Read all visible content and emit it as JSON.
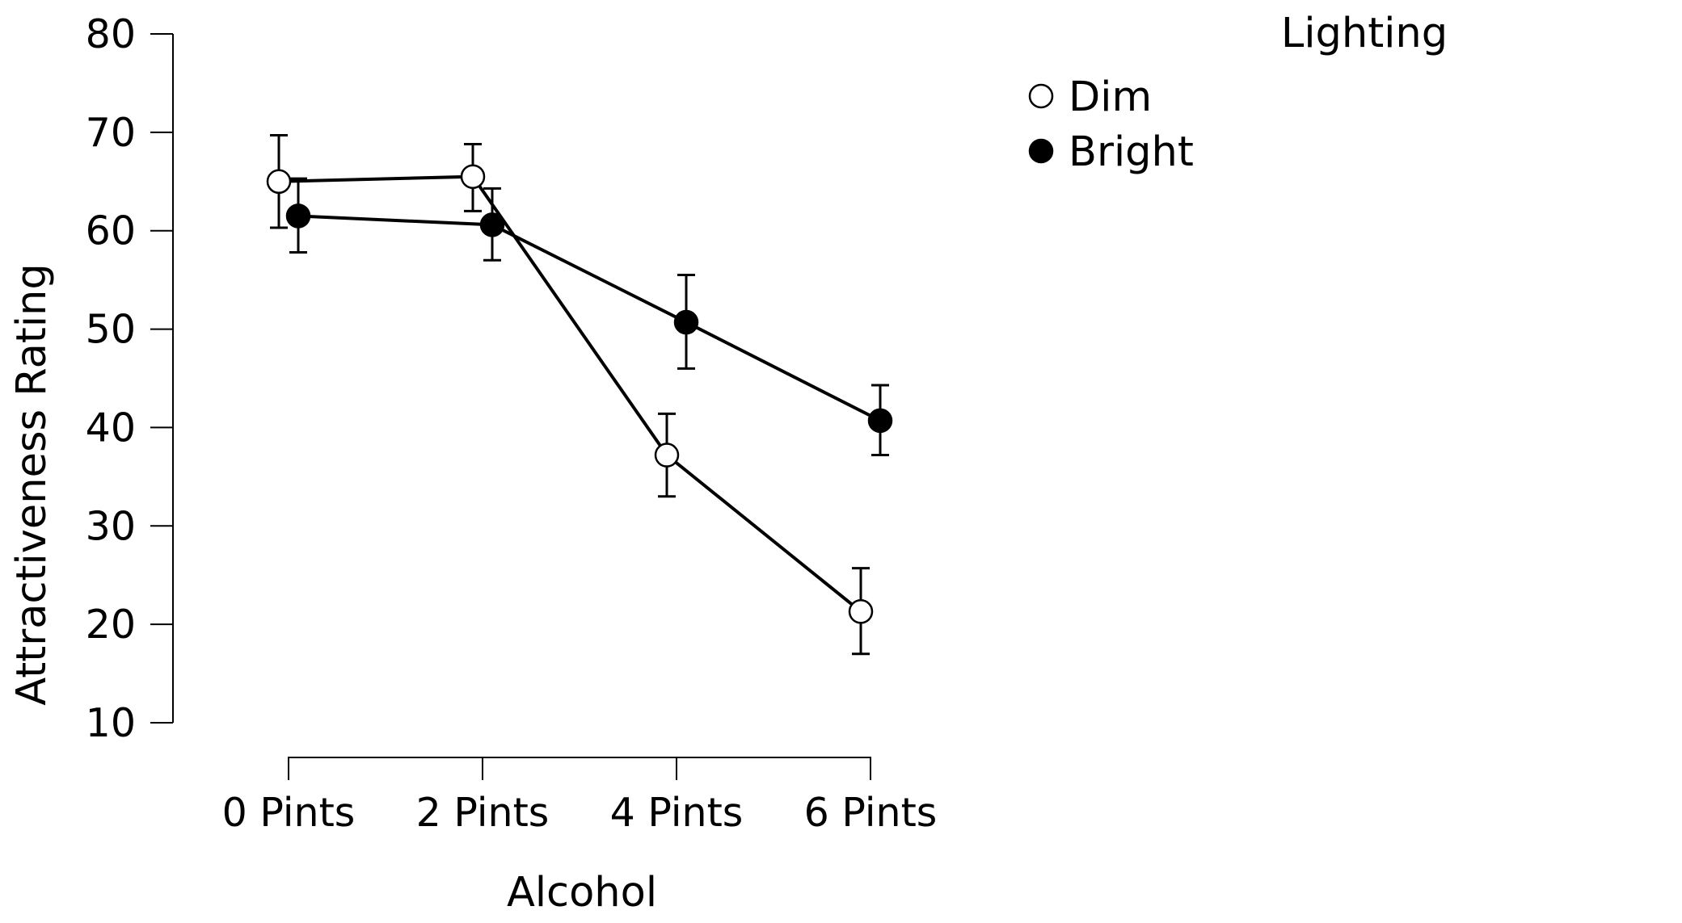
{
  "chart_data": {
    "type": "line",
    "xlabel": "Alcohol",
    "ylabel": "Attractiveness Rating",
    "categories": [
      "0 Pints",
      "2 Pints",
      "4 Pints",
      "6 Pints"
    ],
    "yticks": [
      10,
      20,
      30,
      40,
      50,
      60,
      70,
      80
    ],
    "ylim": [
      10,
      80
    ],
    "grid": false,
    "legend": {
      "title": "Lighting",
      "placement": "top-right"
    },
    "series": [
      {
        "name": "Dim",
        "marker": "open-circle",
        "values": [
          65.0,
          65.5,
          37.2,
          21.3
        ],
        "error_low": [
          60.3,
          62.0,
          33.0,
          17.0
        ],
        "error_high": [
          69.7,
          68.8,
          41.4,
          25.7
        ]
      },
      {
        "name": "Bright",
        "marker": "filled-circle",
        "values": [
          61.5,
          60.6,
          50.7,
          40.7
        ],
        "error_low": [
          57.8,
          57.0,
          46.0,
          37.2
        ],
        "error_high": [
          65.3,
          64.3,
          55.5,
          44.3
        ]
      }
    ]
  }
}
